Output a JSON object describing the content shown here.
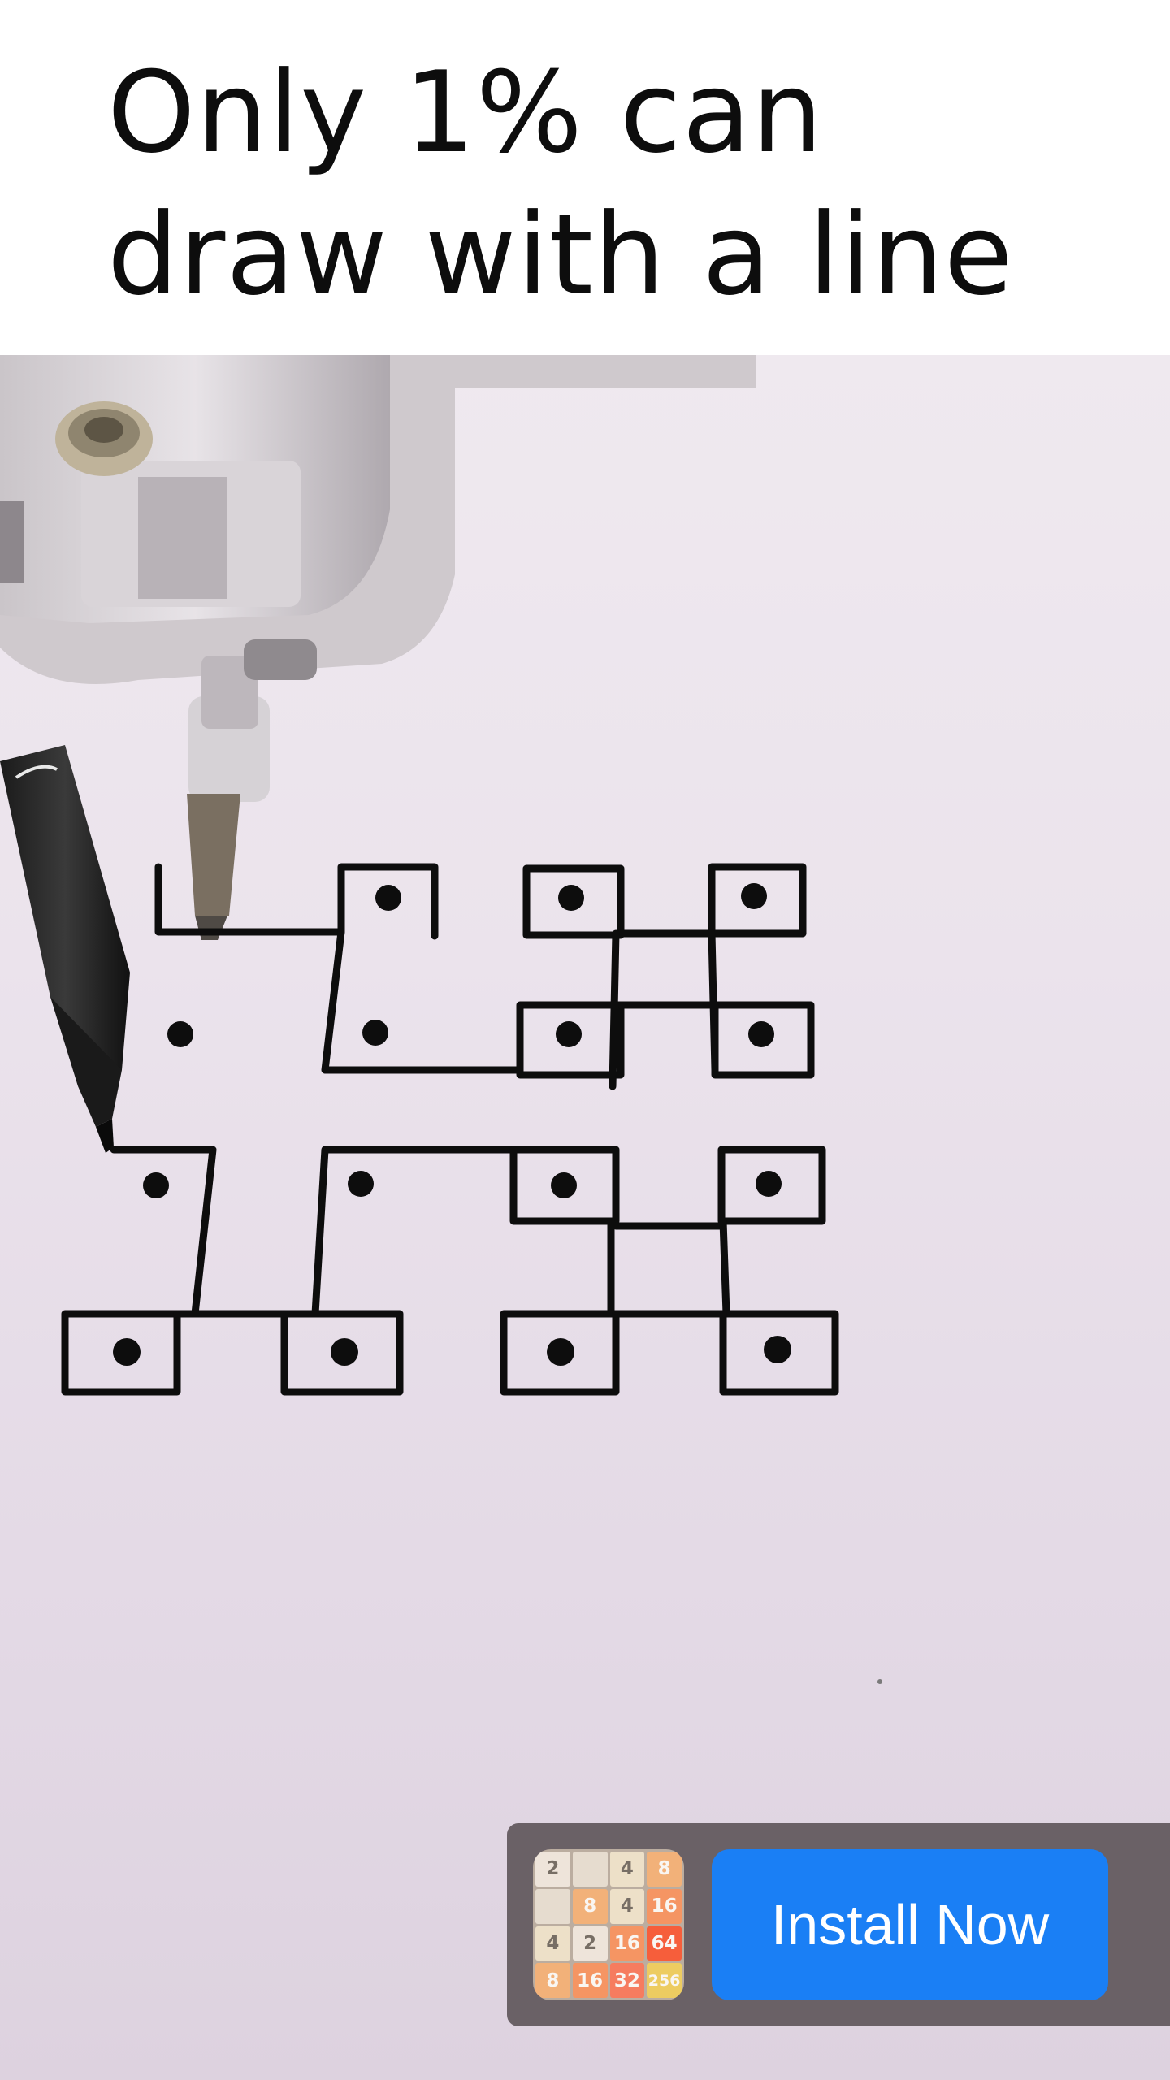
{
  "headline": {
    "line1": "Only 1% can",
    "line2": "draw with a line"
  },
  "ad": {
    "install_label": "Install Now",
    "app_icon": "2048-puzzle-game-icon",
    "tiles": [
      {
        "value": "2",
        "bg": "#eee4da",
        "fg": "#776e65"
      },
      {
        "value": "",
        "bg": "#e6dccf",
        "fg": "#776e65"
      },
      {
        "value": "4",
        "bg": "#ede0c8",
        "fg": "#776e65"
      },
      {
        "value": "8",
        "bg": "#f2b179",
        "fg": "#f9f6f2"
      },
      {
        "value": "",
        "bg": "#e6dccf",
        "fg": "#776e65"
      },
      {
        "value": "8",
        "bg": "#f2b179",
        "fg": "#f9f6f2"
      },
      {
        "value": "4",
        "bg": "#ede0c8",
        "fg": "#776e65"
      },
      {
        "value": "16",
        "bg": "#f59563",
        "fg": "#f9f6f2"
      },
      {
        "value": "4",
        "bg": "#ede0c8",
        "fg": "#776e65"
      },
      {
        "value": "2",
        "bg": "#eee4da",
        "fg": "#776e65"
      },
      {
        "value": "16",
        "bg": "#f59563",
        "fg": "#f9f6f2"
      },
      {
        "value": "64",
        "bg": "#f65e3b",
        "fg": "#f9f6f2"
      },
      {
        "value": "8",
        "bg": "#f2b179",
        "fg": "#f9f6f2"
      },
      {
        "value": "16",
        "bg": "#f59563",
        "fg": "#f9f6f2"
      },
      {
        "value": "32",
        "bg": "#f67c5f",
        "fg": "#f9f6f2"
      },
      {
        "value": "256",
        "bg": "#edcc61",
        "fg": "#f9f6f2"
      }
    ]
  },
  "colors": {
    "install_button": "#1a7ff5",
    "ad_background": "#6a6166",
    "ink": "#0d0d0d"
  }
}
